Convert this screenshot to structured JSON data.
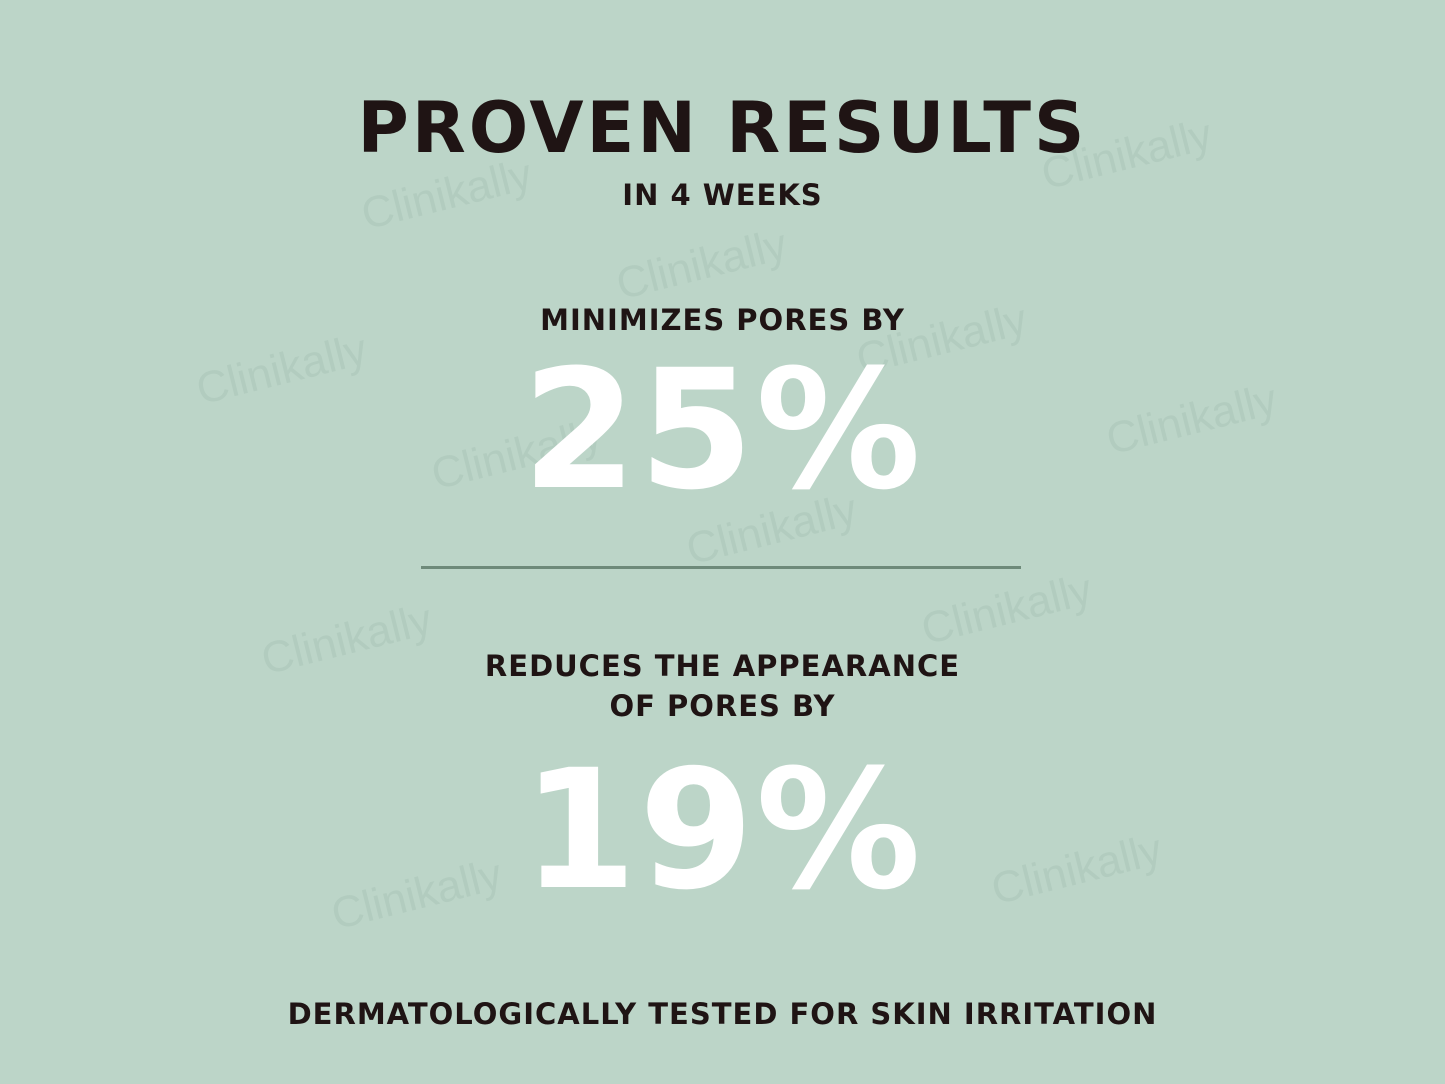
{
  "header": {
    "title": "PROVEN RESULTS",
    "subtitle": "IN 4 WEEKS"
  },
  "stats": [
    {
      "label_lines": [
        "MINIMIZES PORES BY"
      ],
      "value": "25%"
    },
    {
      "label_lines": [
        "REDUCES THE APPEARANCE",
        "OF PORES BY"
      ],
      "value": "19%"
    }
  ],
  "footer": {
    "note": "DERMATOLOGICALLY TESTED FOR SKIN IRRITATION"
  },
  "watermark": "Clinikally",
  "colors": {
    "background": "#bcd5c8",
    "text": "#1f1414",
    "stat": "#ffffff",
    "divider": "#6e8a7a"
  }
}
